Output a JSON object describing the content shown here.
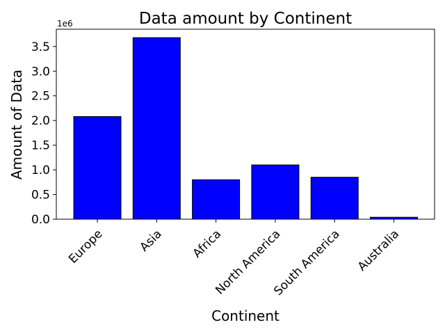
{
  "chart_data": {
    "type": "bar",
    "title": "Data amount by Continent",
    "xlabel": "Continent",
    "ylabel": "Amount of Data",
    "y_offset_label": "1e6",
    "y_scale_multiplier": 1000000,
    "categories": [
      "Europe",
      "Asia",
      "Africa",
      "North America",
      "South America",
      "Australia"
    ],
    "values": [
      2080000,
      3680000,
      800000,
      1100000,
      850000,
      40000
    ],
    "ylim": [
      0,
      3850000
    ],
    "yticks": [
      0,
      500000,
      1000000,
      1500000,
      2000000,
      2500000,
      3000000,
      3500000
    ],
    "ytick_labels": [
      "0.0",
      "0.5",
      "1.0",
      "1.5",
      "2.0",
      "2.5",
      "3.0",
      "3.5"
    ],
    "bar_color": "#0000ff",
    "edge_color": "#000000",
    "grid": false,
    "legend": "none"
  }
}
